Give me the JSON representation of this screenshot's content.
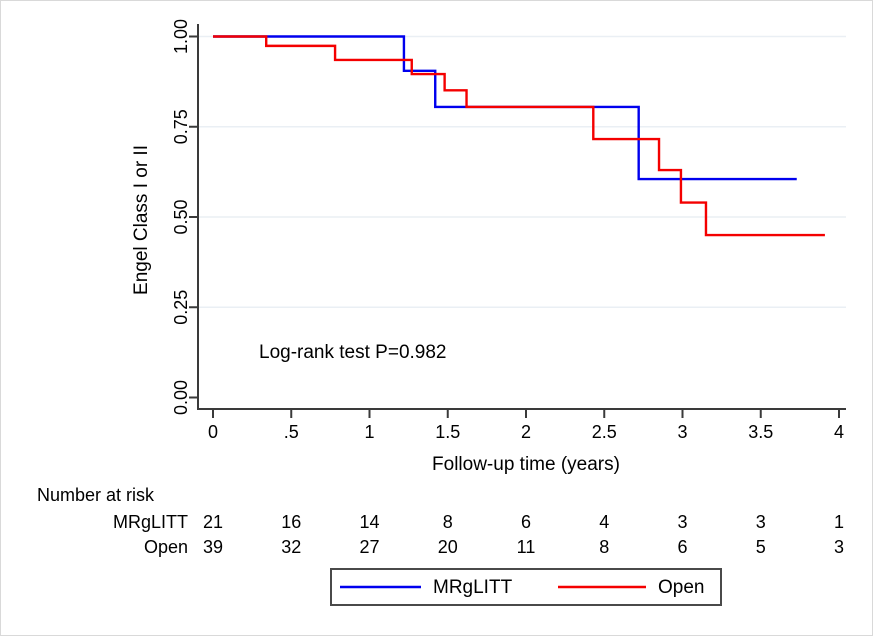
{
  "chart_data": {
    "type": "line",
    "subtype": "kaplan-meier-step",
    "title": "",
    "xlabel": "Follow-up time (years)",
    "ylabel": "Engel Class I or II",
    "xlim": [
      0,
      4
    ],
    "ylim": [
      0.0,
      1.0
    ],
    "grid": "horizontal",
    "x_ticks": [
      0,
      0.5,
      1,
      1.5,
      2,
      2.5,
      3,
      3.5,
      4
    ],
    "x_tick_labels": [
      "0",
      ".5",
      "1",
      "1.5",
      "2",
      "2.5",
      "3",
      "3.5",
      "4"
    ],
    "y_ticks": [
      0.0,
      0.25,
      0.5,
      0.75,
      1.0
    ],
    "y_tick_labels": [
      "0.00",
      "0.25",
      "0.50",
      "0.75",
      "1.00"
    ],
    "annotation": "Log-rank test P=0.982",
    "legend_position": "bottom",
    "series": [
      {
        "name": "MRgLITT",
        "color": "#0000ee",
        "steps": [
          [
            0,
            1.0
          ],
          [
            1.22,
            0.905
          ],
          [
            1.42,
            0.805
          ],
          [
            2.72,
            0.605
          ]
        ],
        "end_time": 3.73
      },
      {
        "name": "Open",
        "color": "#f40000",
        "steps": [
          [
            0,
            1.0
          ],
          [
            0.34,
            0.974
          ],
          [
            0.78,
            0.935
          ],
          [
            1.27,
            0.896
          ],
          [
            1.48,
            0.851
          ],
          [
            1.62,
            0.805
          ],
          [
            2.43,
            0.716
          ],
          [
            2.85,
            0.63
          ],
          [
            2.99,
            0.54
          ],
          [
            3.15,
            0.45
          ]
        ],
        "end_time": 3.91
      }
    ]
  },
  "risk_table": {
    "title": "Number at risk",
    "times": [
      0,
      0.5,
      1,
      1.5,
      2,
      2.5,
      3,
      3.5,
      4
    ],
    "rows": [
      {
        "label": "MRgLITT",
        "values": [
          "21",
          "16",
          "14",
          "8",
          "6",
          "4",
          "3",
          "3",
          "1"
        ]
      },
      {
        "label": "Open",
        "values": [
          "39",
          "32",
          "27",
          "20",
          "11",
          "8",
          "6",
          "5",
          "3"
        ]
      }
    ]
  },
  "legend": {
    "items": [
      {
        "label": "MRgLITT",
        "color": "#0000ee"
      },
      {
        "label": "Open",
        "color": "#f40000"
      }
    ]
  },
  "colors": {
    "grid": "#eaeff4",
    "axis": "#3a3a3a",
    "legend_border": "#4a4a4a",
    "background": "#ffffff",
    "text": "#000000"
  }
}
